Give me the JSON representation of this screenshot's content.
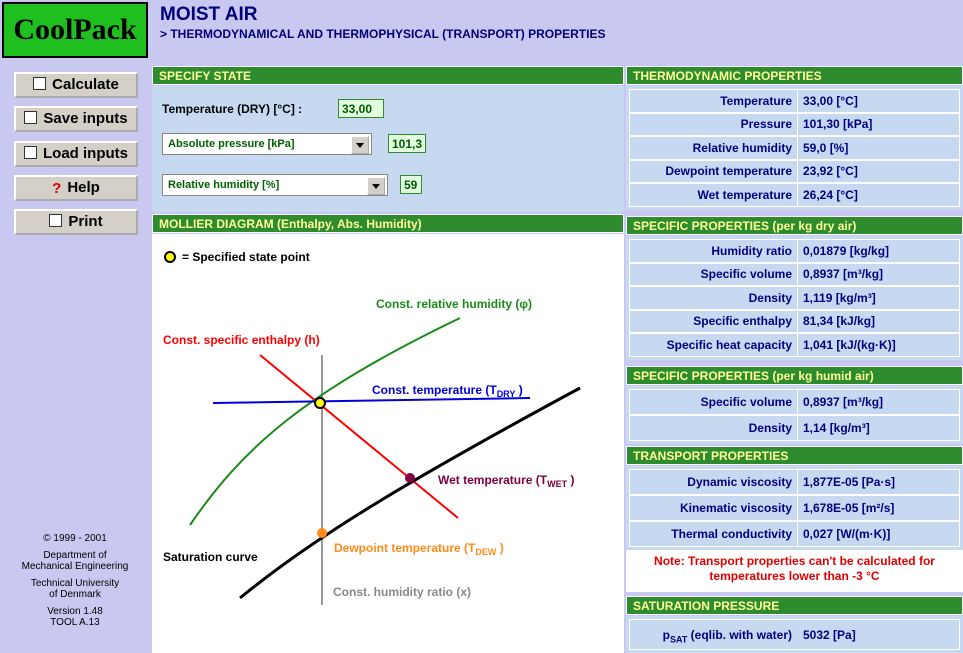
{
  "sidebar": {
    "logo": "CoolPack",
    "buttons": [
      "Calculate",
      "Save inputs",
      "Load inputs",
      "Help",
      "Print"
    ],
    "credits": [
      "© 1999 - 2001",
      "Department of",
      "Mechanical Engineering",
      "Technical University",
      "of Denmark",
      "Version 1.48",
      "TOOL A.13"
    ]
  },
  "header": {
    "title": "MOIST AIR",
    "subtitle": "> THERMODYNAMICAL AND THERMOPHYSICAL (TRANSPORT) PROPERTIES"
  },
  "specify_state": {
    "title": "SPECIFY STATE",
    "temperature_label": "Temperature (DRY) [°C] :",
    "temperature_value": "33,00",
    "inputs": [
      {
        "select": "Absolute pressure [kPa]",
        "value": "101,3"
      },
      {
        "select": "Relative humidity [%]",
        "value": "59"
      }
    ]
  },
  "mollier": {
    "title": "MOLLIER DIAGRAM (Enthalpy, Abs. Humidity)",
    "legend": "= Specified state point",
    "relative_humidity": "Const. relative humidity (φ)",
    "enthalpy": "Const. specific enthalpy (h)",
    "temperature": [
      "Const. temperature (T",
      "DRY",
      " )"
    ],
    "wet": [
      "Wet temperature (T",
      "WET",
      " )"
    ],
    "dewpoint": [
      "Dewpoint temperature (T",
      "DEW",
      " )"
    ],
    "saturation": "Saturation curve",
    "humidity_ratio": "Const. humidity ratio (x)"
  },
  "sections": [
    {
      "title": "THERMODYNAMIC PROPERTIES",
      "rows": [
        [
          "Temperature",
          "33,00 [°C]"
        ],
        [
          "Pressure",
          "101,30 [kPa]"
        ],
        [
          "Relative humidity",
          "59,0 [%]"
        ],
        [
          "Dewpoint temperature",
          "23,92 [°C]"
        ],
        [
          "Wet temperature",
          "26,24 [°C]"
        ]
      ]
    },
    {
      "title": "SPECIFIC PROPERTIES (per kg dry air)",
      "rows": [
        [
          "Humidity ratio",
          "0,01879 [kg/kg]"
        ],
        [
          "Specific volume",
          "0,8937 [m³/kg]"
        ],
        [
          "Density",
          "1,119 [kg/m³]"
        ],
        [
          "Specific enthalpy",
          "81,34 [kJ/kg]"
        ],
        [
          "Specific heat capacity",
          "1,041 [kJ/(kg·K)]"
        ]
      ]
    },
    {
      "title": "SPECIFIC PROPERTIES (per kg humid air)",
      "rows": [
        [
          "Specific volume",
          "0,8937 [m³/kg]"
        ],
        [
          "Density",
          "1,14 [kg/m³]"
        ]
      ]
    },
    {
      "title": "TRANSPORT PROPERTIES",
      "rows": [
        [
          "Dynamic viscosity",
          "1,877E-05 [Pa·s]"
        ],
        [
          "Kinematic viscosity",
          "1,678E-05 [m²/s]"
        ],
        [
          "Thermal conductivity",
          "0,027 [W/(m·K)]"
        ]
      ]
    }
  ],
  "note": [
    "Note: Transport properties can't be calculated for",
    "temperatures lower than -3 °C"
  ],
  "saturation": {
    "title": "SATURATION PRESSURE",
    "label": [
      "p",
      "SAT",
      " (eqlib. with water)"
    ],
    "value": "5032 [Pa]"
  }
}
